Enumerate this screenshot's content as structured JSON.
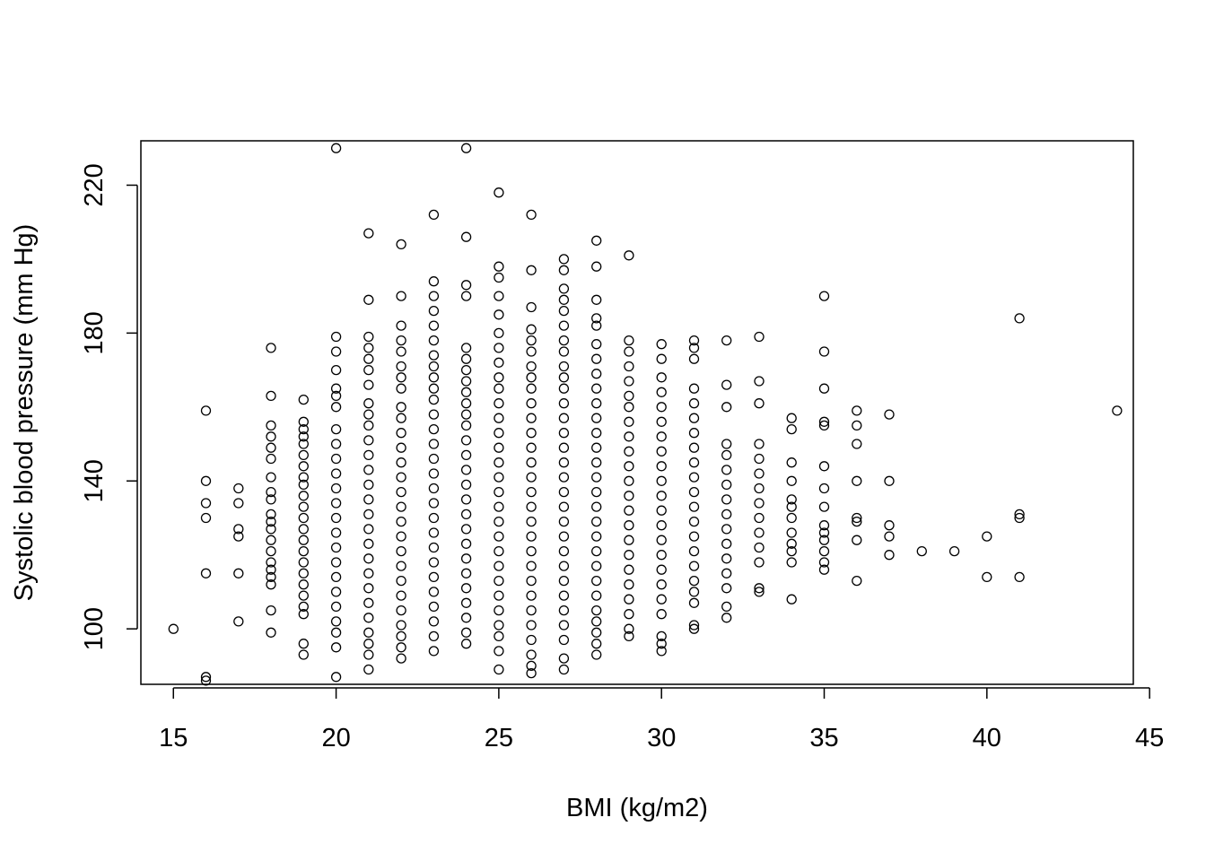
{
  "chart_data": {
    "type": "scatter",
    "title": "",
    "xlabel": "BMI (kg/m2)",
    "ylabel": "Systolic blood pressure (mm Hg)",
    "xlim": [
      14,
      44.5
    ],
    "ylim": [
      85,
      232
    ],
    "xticks": [
      15,
      20,
      25,
      30,
      35,
      40,
      45
    ],
    "yticks": [
      100,
      140,
      180,
      220
    ],
    "grid": false,
    "legend": "none",
    "marker": "open-circle",
    "color": "#000000",
    "points": [
      [
        15,
        100
      ],
      [
        16,
        159
      ],
      [
        16,
        140
      ],
      [
        16,
        134
      ],
      [
        16,
        130
      ],
      [
        16,
        115
      ],
      [
        16,
        87
      ],
      [
        16,
        86
      ],
      [
        17,
        138
      ],
      [
        17,
        134
      ],
      [
        17,
        127
      ],
      [
        17,
        125
      ],
      [
        17,
        115
      ],
      [
        17,
        102
      ],
      [
        18,
        176
      ],
      [
        18,
        163
      ],
      [
        18,
        155
      ],
      [
        18,
        152
      ],
      [
        18,
        149
      ],
      [
        18,
        146
      ],
      [
        18,
        141
      ],
      [
        18,
        137
      ],
      [
        18,
        135
      ],
      [
        18,
        131
      ],
      [
        18,
        129
      ],
      [
        18,
        127
      ],
      [
        18,
        124
      ],
      [
        18,
        121
      ],
      [
        18,
        118
      ],
      [
        18,
        116
      ],
      [
        18,
        114
      ],
      [
        18,
        112
      ],
      [
        18,
        105
      ],
      [
        18,
        99
      ],
      [
        19,
        162
      ],
      [
        19,
        156
      ],
      [
        19,
        154
      ],
      [
        19,
        152
      ],
      [
        19,
        150
      ],
      [
        19,
        147
      ],
      [
        19,
        144
      ],
      [
        19,
        141
      ],
      [
        19,
        139
      ],
      [
        19,
        136
      ],
      [
        19,
        133
      ],
      [
        19,
        130
      ],
      [
        19,
        127
      ],
      [
        19,
        124
      ],
      [
        19,
        121
      ],
      [
        19,
        118
      ],
      [
        19,
        115
      ],
      [
        19,
        112
      ],
      [
        19,
        109
      ],
      [
        19,
        106
      ],
      [
        19,
        104
      ],
      [
        19,
        96
      ],
      [
        19,
        93
      ],
      [
        20,
        230
      ],
      [
        20,
        179
      ],
      [
        20,
        175
      ],
      [
        20,
        170
      ],
      [
        20,
        165
      ],
      [
        20,
        163
      ],
      [
        20,
        160
      ],
      [
        20,
        154
      ],
      [
        20,
        150
      ],
      [
        20,
        146
      ],
      [
        20,
        142
      ],
      [
        20,
        138
      ],
      [
        20,
        134
      ],
      [
        20,
        130
      ],
      [
        20,
        126
      ],
      [
        20,
        122
      ],
      [
        20,
        118
      ],
      [
        20,
        114
      ],
      [
        20,
        110
      ],
      [
        20,
        106
      ],
      [
        20,
        102
      ],
      [
        20,
        99
      ],
      [
        20,
        95
      ],
      [
        20,
        87
      ],
      [
        21,
        207
      ],
      [
        21,
        189
      ],
      [
        21,
        179
      ],
      [
        21,
        176
      ],
      [
        21,
        173
      ],
      [
        21,
        170
      ],
      [
        21,
        166
      ],
      [
        21,
        161
      ],
      [
        21,
        158
      ],
      [
        21,
        155
      ],
      [
        21,
        151
      ],
      [
        21,
        147
      ],
      [
        21,
        143
      ],
      [
        21,
        139
      ],
      [
        21,
        135
      ],
      [
        21,
        131
      ],
      [
        21,
        127
      ],
      [
        21,
        123
      ],
      [
        21,
        119
      ],
      [
        21,
        115
      ],
      [
        21,
        111
      ],
      [
        21,
        107
      ],
      [
        21,
        103
      ],
      [
        21,
        99
      ],
      [
        21,
        96
      ],
      [
        21,
        93
      ],
      [
        21,
        89
      ],
      [
        22,
        204
      ],
      [
        22,
        190
      ],
      [
        22,
        182
      ],
      [
        22,
        178
      ],
      [
        22,
        175
      ],
      [
        22,
        171
      ],
      [
        22,
        168
      ],
      [
        22,
        165
      ],
      [
        22,
        160
      ],
      [
        22,
        157
      ],
      [
        22,
        153
      ],
      [
        22,
        149
      ],
      [
        22,
        145
      ],
      [
        22,
        141
      ],
      [
        22,
        137
      ],
      [
        22,
        133
      ],
      [
        22,
        129
      ],
      [
        22,
        125
      ],
      [
        22,
        121
      ],
      [
        22,
        117
      ],
      [
        22,
        113
      ],
      [
        22,
        109
      ],
      [
        22,
        105
      ],
      [
        22,
        101
      ],
      [
        22,
        98
      ],
      [
        22,
        95
      ],
      [
        22,
        92
      ],
      [
        23,
        212
      ],
      [
        23,
        194
      ],
      [
        23,
        190
      ],
      [
        23,
        186
      ],
      [
        23,
        182
      ],
      [
        23,
        178
      ],
      [
        23,
        174
      ],
      [
        23,
        171
      ],
      [
        23,
        168
      ],
      [
        23,
        165
      ],
      [
        23,
        162
      ],
      [
        23,
        158
      ],
      [
        23,
        154
      ],
      [
        23,
        150
      ],
      [
        23,
        146
      ],
      [
        23,
        142
      ],
      [
        23,
        138
      ],
      [
        23,
        134
      ],
      [
        23,
        130
      ],
      [
        23,
        126
      ],
      [
        23,
        122
      ],
      [
        23,
        118
      ],
      [
        23,
        114
      ],
      [
        23,
        110
      ],
      [
        23,
        106
      ],
      [
        23,
        102
      ],
      [
        23,
        98
      ],
      [
        23,
        94
      ],
      [
        24,
        230
      ],
      [
        24,
        206
      ],
      [
        24,
        193
      ],
      [
        24,
        190
      ],
      [
        24,
        176
      ],
      [
        24,
        173
      ],
      [
        24,
        170
      ],
      [
        24,
        167
      ],
      [
        24,
        164
      ],
      [
        24,
        161
      ],
      [
        24,
        158
      ],
      [
        24,
        155
      ],
      [
        24,
        151
      ],
      [
        24,
        147
      ],
      [
        24,
        143
      ],
      [
        24,
        139
      ],
      [
        24,
        135
      ],
      [
        24,
        131
      ],
      [
        24,
        127
      ],
      [
        24,
        123
      ],
      [
        24,
        119
      ],
      [
        24,
        115
      ],
      [
        24,
        111
      ],
      [
        24,
        107
      ],
      [
        24,
        103
      ],
      [
        24,
        99
      ],
      [
        24,
        96
      ],
      [
        25,
        218
      ],
      [
        25,
        198
      ],
      [
        25,
        195
      ],
      [
        25,
        190
      ],
      [
        25,
        185
      ],
      [
        25,
        180
      ],
      [
        25,
        176
      ],
      [
        25,
        172
      ],
      [
        25,
        168
      ],
      [
        25,
        165
      ],
      [
        25,
        161
      ],
      [
        25,
        157
      ],
      [
        25,
        153
      ],
      [
        25,
        149
      ],
      [
        25,
        145
      ],
      [
        25,
        141
      ],
      [
        25,
        137
      ],
      [
        25,
        133
      ],
      [
        25,
        129
      ],
      [
        25,
        125
      ],
      [
        25,
        121
      ],
      [
        25,
        117
      ],
      [
        25,
        113
      ],
      [
        25,
        109
      ],
      [
        25,
        105
      ],
      [
        25,
        101
      ],
      [
        25,
        98
      ],
      [
        25,
        94
      ],
      [
        25,
        89
      ],
      [
        26,
        212
      ],
      [
        26,
        197
      ],
      [
        26,
        187
      ],
      [
        26,
        181
      ],
      [
        26,
        178
      ],
      [
        26,
        175
      ],
      [
        26,
        171
      ],
      [
        26,
        168
      ],
      [
        26,
        165
      ],
      [
        26,
        161
      ],
      [
        26,
        157
      ],
      [
        26,
        153
      ],
      [
        26,
        149
      ],
      [
        26,
        145
      ],
      [
        26,
        141
      ],
      [
        26,
        137
      ],
      [
        26,
        133
      ],
      [
        26,
        129
      ],
      [
        26,
        125
      ],
      [
        26,
        121
      ],
      [
        26,
        117
      ],
      [
        26,
        113
      ],
      [
        26,
        109
      ],
      [
        26,
        105
      ],
      [
        26,
        101
      ],
      [
        26,
        97
      ],
      [
        26,
        93
      ],
      [
        26,
        90
      ],
      [
        26,
        88
      ],
      [
        27,
        200
      ],
      [
        27,
        197
      ],
      [
        27,
        192
      ],
      [
        27,
        189
      ],
      [
        27,
        186
      ],
      [
        27,
        182
      ],
      [
        27,
        178
      ],
      [
        27,
        175
      ],
      [
        27,
        171
      ],
      [
        27,
        168
      ],
      [
        27,
        165
      ],
      [
        27,
        161
      ],
      [
        27,
        157
      ],
      [
        27,
        153
      ],
      [
        27,
        149
      ],
      [
        27,
        145
      ],
      [
        27,
        141
      ],
      [
        27,
        137
      ],
      [
        27,
        133
      ],
      [
        27,
        129
      ],
      [
        27,
        125
      ],
      [
        27,
        121
      ],
      [
        27,
        117
      ],
      [
        27,
        113
      ],
      [
        27,
        109
      ],
      [
        27,
        105
      ],
      [
        27,
        101
      ],
      [
        27,
        97
      ],
      [
        27,
        92
      ],
      [
        27,
        89
      ],
      [
        28,
        205
      ],
      [
        28,
        198
      ],
      [
        28,
        189
      ],
      [
        28,
        184
      ],
      [
        28,
        182
      ],
      [
        28,
        177
      ],
      [
        28,
        173
      ],
      [
        28,
        169
      ],
      [
        28,
        165
      ],
      [
        28,
        161
      ],
      [
        28,
        157
      ],
      [
        28,
        153
      ],
      [
        28,
        149
      ],
      [
        28,
        145
      ],
      [
        28,
        141
      ],
      [
        28,
        137
      ],
      [
        28,
        133
      ],
      [
        28,
        129
      ],
      [
        28,
        125
      ],
      [
        28,
        121
      ],
      [
        28,
        117
      ],
      [
        28,
        113
      ],
      [
        28,
        109
      ],
      [
        28,
        105
      ],
      [
        28,
        102
      ],
      [
        28,
        99
      ],
      [
        28,
        96
      ],
      [
        28,
        93
      ],
      [
        29,
        201
      ],
      [
        29,
        178
      ],
      [
        29,
        175
      ],
      [
        29,
        171
      ],
      [
        29,
        167
      ],
      [
        29,
        163
      ],
      [
        29,
        160
      ],
      [
        29,
        156
      ],
      [
        29,
        152
      ],
      [
        29,
        148
      ],
      [
        29,
        144
      ],
      [
        29,
        140
      ],
      [
        29,
        136
      ],
      [
        29,
        132
      ],
      [
        29,
        128
      ],
      [
        29,
        124
      ],
      [
        29,
        120
      ],
      [
        29,
        116
      ],
      [
        29,
        112
      ],
      [
        29,
        108
      ],
      [
        29,
        104
      ],
      [
        29,
        100
      ],
      [
        29,
        98
      ],
      [
        30,
        177
      ],
      [
        30,
        173
      ],
      [
        30,
        168
      ],
      [
        30,
        164
      ],
      [
        30,
        160
      ],
      [
        30,
        156
      ],
      [
        30,
        152
      ],
      [
        30,
        148
      ],
      [
        30,
        144
      ],
      [
        30,
        140
      ],
      [
        30,
        136
      ],
      [
        30,
        132
      ],
      [
        30,
        128
      ],
      [
        30,
        124
      ],
      [
        30,
        120
      ],
      [
        30,
        116
      ],
      [
        30,
        112
      ],
      [
        30,
        108
      ],
      [
        30,
        104
      ],
      [
        30,
        98
      ],
      [
        30,
        96
      ],
      [
        30,
        94
      ],
      [
        31,
        178
      ],
      [
        31,
        176
      ],
      [
        31,
        173
      ],
      [
        31,
        165
      ],
      [
        31,
        161
      ],
      [
        31,
        157
      ],
      [
        31,
        153
      ],
      [
        31,
        149
      ],
      [
        31,
        145
      ],
      [
        31,
        141
      ],
      [
        31,
        137
      ],
      [
        31,
        133
      ],
      [
        31,
        129
      ],
      [
        31,
        125
      ],
      [
        31,
        121
      ],
      [
        31,
        117
      ],
      [
        31,
        113
      ],
      [
        31,
        110
      ],
      [
        31,
        107
      ],
      [
        31,
        101
      ],
      [
        31,
        100
      ],
      [
        32,
        178
      ],
      [
        32,
        166
      ],
      [
        32,
        160
      ],
      [
        32,
        150
      ],
      [
        32,
        147
      ],
      [
        32,
        143
      ],
      [
        32,
        139
      ],
      [
        32,
        135
      ],
      [
        32,
        131
      ],
      [
        32,
        127
      ],
      [
        32,
        123
      ],
      [
        32,
        119
      ],
      [
        32,
        115
      ],
      [
        32,
        111
      ],
      [
        32,
        106
      ],
      [
        32,
        103
      ],
      [
        33,
        179
      ],
      [
        33,
        167
      ],
      [
        33,
        161
      ],
      [
        33,
        150
      ],
      [
        33,
        146
      ],
      [
        33,
        142
      ],
      [
        33,
        138
      ],
      [
        33,
        134
      ],
      [
        33,
        130
      ],
      [
        33,
        126
      ],
      [
        33,
        122
      ],
      [
        33,
        118
      ],
      [
        33,
        111
      ],
      [
        33,
        110
      ],
      [
        34,
        157
      ],
      [
        34,
        154
      ],
      [
        34,
        145
      ],
      [
        34,
        140
      ],
      [
        34,
        135
      ],
      [
        34,
        133
      ],
      [
        34,
        130
      ],
      [
        34,
        126
      ],
      [
        34,
        123
      ],
      [
        34,
        121
      ],
      [
        34,
        118
      ],
      [
        34,
        108
      ],
      [
        35,
        190
      ],
      [
        35,
        175
      ],
      [
        35,
        165
      ],
      [
        35,
        156
      ],
      [
        35,
        155
      ],
      [
        35,
        144
      ],
      [
        35,
        138
      ],
      [
        35,
        133
      ],
      [
        35,
        128
      ],
      [
        35,
        126
      ],
      [
        35,
        124
      ],
      [
        35,
        121
      ],
      [
        35,
        118
      ],
      [
        35,
        116
      ],
      [
        36,
        159
      ],
      [
        36,
        155
      ],
      [
        36,
        150
      ],
      [
        36,
        140
      ],
      [
        36,
        130
      ],
      [
        36,
        129
      ],
      [
        36,
        124
      ],
      [
        36,
        113
      ],
      [
        37,
        158
      ],
      [
        37,
        140
      ],
      [
        37,
        128
      ],
      [
        37,
        125
      ],
      [
        37,
        120
      ],
      [
        38,
        121
      ],
      [
        39,
        121
      ],
      [
        40,
        125
      ],
      [
        40,
        114
      ],
      [
        41,
        184
      ],
      [
        41,
        131
      ],
      [
        41,
        130
      ],
      [
        41,
        114
      ],
      [
        44,
        159
      ]
    ]
  }
}
